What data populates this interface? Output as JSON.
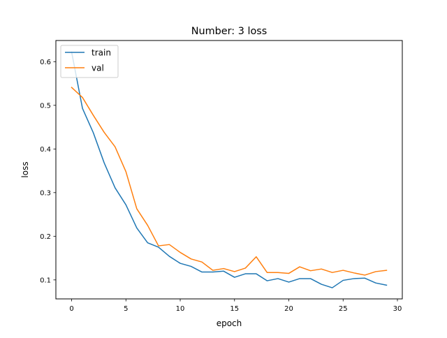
{
  "chart_data": {
    "type": "line",
    "title": "Number: 3 loss",
    "xlabel": "epoch",
    "ylabel": "loss",
    "xlim": [
      -1.45,
      30.45
    ],
    "ylim": [
      0.0565,
      0.6485
    ],
    "xticks": [
      0,
      5,
      10,
      15,
      20,
      25,
      30
    ],
    "yticks": [
      0.1,
      0.2,
      0.3,
      0.4,
      0.5,
      0.6
    ],
    "ytick_labels": [
      "0.1",
      "0.2",
      "0.3",
      "0.4",
      "0.5",
      "0.6"
    ],
    "grid": false,
    "legend_position": "top-left",
    "x": [
      0,
      1,
      2,
      3,
      4,
      5,
      6,
      7,
      8,
      9,
      10,
      11,
      12,
      13,
      14,
      15,
      16,
      17,
      18,
      19,
      20,
      21,
      22,
      23,
      24,
      25,
      26,
      27,
      28,
      29
    ],
    "series": [
      {
        "name": "train",
        "color": "#1f77b4",
        "values": [
          0.622,
          0.493,
          0.437,
          0.368,
          0.311,
          0.272,
          0.219,
          0.185,
          0.175,
          0.154,
          0.138,
          0.131,
          0.118,
          0.118,
          0.12,
          0.106,
          0.114,
          0.114,
          0.098,
          0.103,
          0.095,
          0.103,
          0.103,
          0.09,
          0.082,
          0.099,
          0.103,
          0.104,
          0.093,
          0.088
        ]
      },
      {
        "name": "val",
        "color": "#ff7f0e",
        "values": [
          0.541,
          0.518,
          0.477,
          0.438,
          0.405,
          0.348,
          0.263,
          0.225,
          0.178,
          0.181,
          0.163,
          0.148,
          0.141,
          0.122,
          0.126,
          0.119,
          0.127,
          0.153,
          0.117,
          0.117,
          0.115,
          0.13,
          0.121,
          0.125,
          0.117,
          0.122,
          0.116,
          0.111,
          0.119,
          0.122
        ]
      }
    ]
  }
}
